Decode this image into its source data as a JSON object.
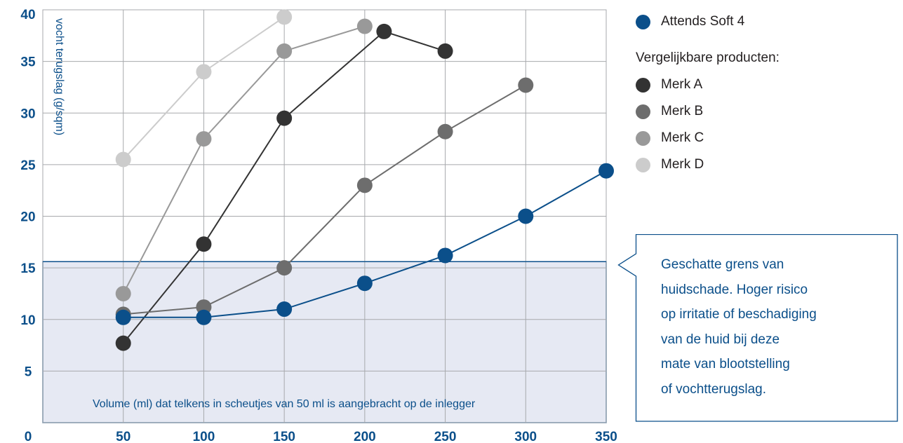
{
  "chart_data": {
    "type": "line",
    "x": [
      50,
      100,
      150,
      200,
      250,
      300,
      350
    ],
    "xlim": [
      0,
      350
    ],
    "ylim": [
      0,
      40
    ],
    "x_ticks": [
      "50",
      "100",
      "150",
      "200",
      "250",
      "300",
      "350"
    ],
    "y_ticks": [
      "0",
      "5",
      "10",
      "15",
      "20",
      "25",
      "30",
      "35",
      "40"
    ],
    "ylabel": "vocht terugslag (g/sqm)",
    "xlabel": "Volume (ml) dat telkens in scheutjes van 50 ml is aangebracht op de inlegger",
    "grid": true,
    "threshold": {
      "y": 15.6,
      "color": "#e6e9f3",
      "border": "#0b4f8a"
    },
    "series": [
      {
        "name": "Merk D",
        "color": "#cccccc",
        "points": [
          [
            50,
            25.5
          ],
          [
            100,
            34
          ],
          [
            150,
            39.3
          ]
        ]
      },
      {
        "name": "Merk C",
        "color": "#999999",
        "points": [
          [
            50,
            12.5
          ],
          [
            100,
            27.5
          ],
          [
            150,
            36
          ],
          [
            200,
            38.4
          ]
        ]
      },
      {
        "name": "Merk A",
        "color": "#333333",
        "points": [
          [
            50,
            7.7
          ],
          [
            100,
            17.3
          ],
          [
            150,
            29.5
          ],
          [
            212,
            37.9
          ],
          [
            250,
            36
          ]
        ]
      },
      {
        "name": "Merk B",
        "color": "#6d6d6d",
        "points": [
          [
            50,
            10.5
          ],
          [
            100,
            11.2
          ],
          [
            150,
            15
          ],
          [
            200,
            23
          ],
          [
            250,
            28.2
          ],
          [
            300,
            32.7
          ]
        ]
      },
      {
        "name": "Attends Soft 4",
        "color": "#0b4f8a",
        "points": [
          [
            50,
            10.2
          ],
          [
            100,
            10.2
          ],
          [
            150,
            11
          ],
          [
            200,
            13.5
          ],
          [
            250,
            16.2
          ],
          [
            300,
            20
          ],
          [
            350,
            24.4
          ]
        ]
      }
    ]
  },
  "legend": {
    "main": {
      "label": "Attends Soft 4",
      "color": "#0b4f8a"
    },
    "subtitle": "Vergelijkbare producten:",
    "items": [
      {
        "label": "Merk A",
        "color": "#333333"
      },
      {
        "label": "Merk B",
        "color": "#6d6d6d"
      },
      {
        "label": "Merk C",
        "color": "#999999"
      },
      {
        "label": "Merk D",
        "color": "#cccccc"
      }
    ]
  },
  "callout": {
    "lines": [
      "Geschatte grens van",
      "huidschade. Hoger risico",
      "op irritatie of beschadiging",
      "van de huid bij deze",
      "mate van blootstelling",
      "of vochtterugslag."
    ]
  }
}
